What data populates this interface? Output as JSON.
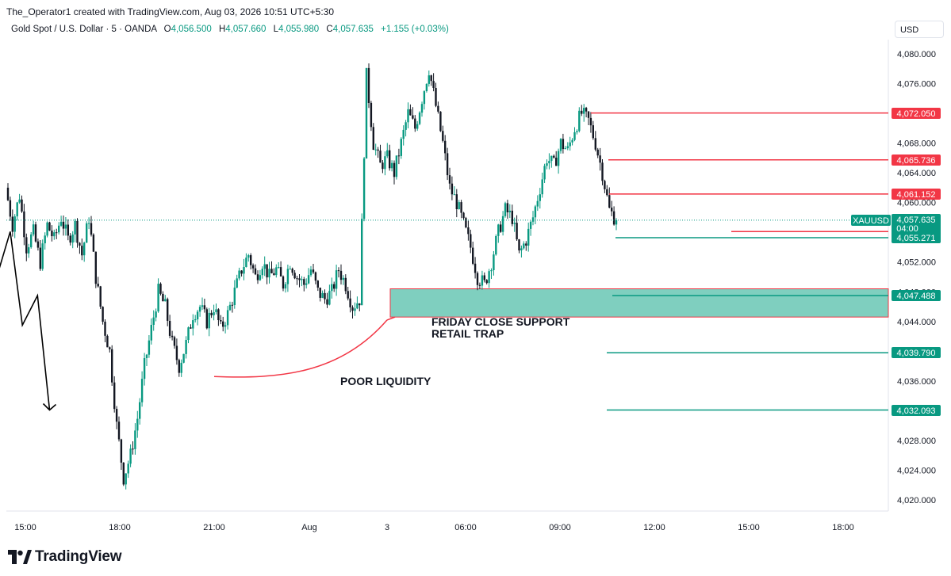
{
  "header": {
    "credit": "The_Operator1 created with TradingView.com, Aug 03, 2026 10:51 UTC+5:30",
    "symbol_desc": "Gold Spot / U.S. Dollar · 5 · OANDA",
    "open_label": "O",
    "open": "4,056.500",
    "high_label": "H",
    "high": "4,057.660",
    "low_label": "L",
    "low": "4,055.980",
    "close_label": "C",
    "close": "4,057.635",
    "change": "+1.155 (+0.03%)",
    "currency": "USD"
  },
  "footer": {
    "brand": "TradingView"
  },
  "colors": {
    "up": "#089981",
    "down": "#131722",
    "red_line": "#f23645",
    "green_line": "#089981",
    "zone_fill": "#7fcfbf"
  },
  "chart_data": {
    "type": "candlestick",
    "symbol": "XAUUSD",
    "timeframe": "5",
    "y_axis": {
      "ylim": [
        4018.6,
        4082.4
      ],
      "ticks": [
        "4,020.000",
        "4,024.000",
        "4,028.000",
        "4,032.000",
        "4,036.000",
        "4,040.000",
        "4,044.000",
        "4,048.000",
        "4,052.000",
        "4,056.000",
        "4,060.000",
        "4,064.000",
        "4,068.000",
        "4,072.000",
        "4,076.000",
        "4,080.000"
      ]
    },
    "x_axis": {
      "labels": [
        "15:00",
        "18:00",
        "21:00",
        "Aug",
        "3",
        "06:00",
        "09:00",
        "12:00",
        "15:00",
        "18:00"
      ]
    },
    "price_path": [
      4062,
      4057,
      4061,
      4054,
      4056,
      4052,
      4057,
      4055,
      4058,
      4055,
      4057,
      4053,
      4058,
      4050,
      4044,
      4040,
      4030,
      4023,
      4026,
      4031,
      4038,
      4043,
      4048,
      4046,
      4041,
      4038,
      4041,
      4045,
      4046,
      4044,
      4046,
      4043,
      4045,
      4048,
      4051,
      4053,
      4050,
      4052,
      4050,
      4051,
      4049,
      4052,
      4050,
      4049,
      4051,
      4048,
      4047,
      4048,
      4051,
      4049,
      4046,
      4047,
      4077,
      4068,
      4065,
      4066,
      4064,
      4068,
      4072,
      4070,
      4074,
      4078,
      4073,
      4068,
      4062,
      4060,
      4057,
      4054,
      4050,
      4049,
      4052,
      4056,
      4059,
      4058,
      4053,
      4055,
      4058,
      4062,
      4066,
      4065,
      4068,
      4067,
      4070,
      4072,
      4071,
      4068,
      4064,
      4059,
      4057.635
    ],
    "projection_path": [
      [
        10.6,
        4055.3
      ],
      [
        11.4,
        4058.2
      ],
      [
        11.9,
        4061.1
      ],
      [
        12.3,
        4058.8
      ],
      [
        12.7,
        4065.7
      ],
      [
        13.2,
        4058.8
      ],
      [
        13.6,
        4061.2
      ],
      [
        14.1,
        4050.6
      ],
      [
        14.5,
        4056.1
      ],
      [
        14.9,
        4043.5
      ],
      [
        15.4,
        4047.5
      ],
      [
        15.8,
        4032.1
      ]
    ],
    "levels": [
      {
        "price": "4,072.050",
        "color": "red"
      },
      {
        "price": "4,065.736",
        "color": "red"
      },
      {
        "price": "4,061.152",
        "color": "red"
      },
      {
        "price": "4,056.108",
        "color": "red"
      },
      {
        "price": "4,055.271",
        "color": "green"
      },
      {
        "price": "4,047.488",
        "color": "green"
      },
      {
        "price": "4,039.790",
        "color": "green"
      },
      {
        "price": "4,032.093",
        "color": "green"
      }
    ],
    "current_price": {
      "symbol": "XAUUSD",
      "price": "4,057.635",
      "countdown": "04:00"
    },
    "zone": {
      "top": 4048.4,
      "bottom": 4044.6
    },
    "annotations": {
      "zone_line1": "FRIDAY CLOSE SUPPORT",
      "zone_line2": "RETAIL TRAP",
      "liquidity": "POOR LIQUIDITY"
    }
  }
}
